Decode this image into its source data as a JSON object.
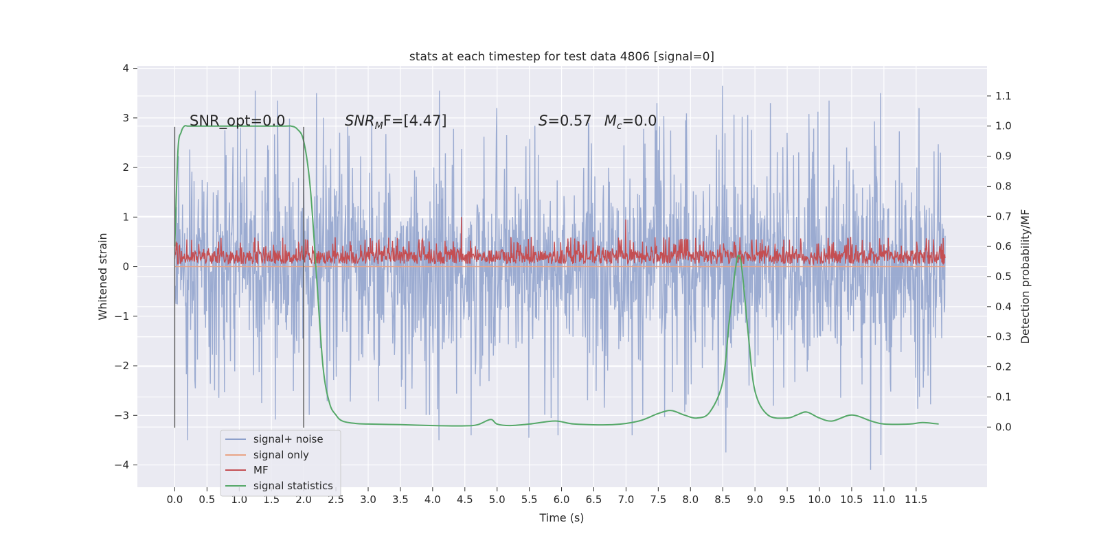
{
  "chart_data": {
    "type": "line",
    "title": "stats at each timestep for test data 4806 [signal=0]",
    "xlabel": "Time (s)",
    "ylabel": "Whitened strain",
    "ylabel_right": "Detection probability/MF",
    "xlim": [
      -0.58,
      12.6
    ],
    "ylim": [
      -4.45,
      4.05
    ],
    "ylim_right": [
      -0.2,
      1.2
    ],
    "x_ticks": [
      "0.0",
      "0.5",
      "1.0",
      "1.5",
      "2.0",
      "2.5",
      "3.0",
      "3.5",
      "4.0",
      "4.5",
      "5.0",
      "5.5",
      "6.0",
      "6.5",
      "7.0",
      "7.5",
      "8.0",
      "8.5",
      "9.0",
      "9.5",
      "10.0",
      "10.5",
      "11.0",
      "11.5"
    ],
    "y_ticks": [
      "−4",
      "−3",
      "−2",
      "−1",
      "0",
      "1",
      "2",
      "3",
      "4"
    ],
    "y_ticks_right": [
      "0.0",
      "0.1",
      "0.2",
      "0.3",
      "0.4",
      "0.5",
      "0.6",
      "0.7",
      "0.8",
      "0.9",
      "1.0",
      "1.1"
    ],
    "grid": true,
    "legend_position": "lower-left",
    "window_markers": {
      "x": [
        0.0,
        2.0
      ],
      "y_range": [
        -3.25,
        2.82
      ]
    },
    "annotations": {
      "snr_opt": "SNR_opt=0.0",
      "snr_mf_main": "SNR",
      "snr_mf_sub": "M",
      "snr_mf_tail": "F=[4.47]",
      "s_main": "S",
      "s_tail": "=0.57",
      "mc_main": "M",
      "mc_sub": "c",
      "mc_tail": "=0.0"
    },
    "series": [
      {
        "name": "signal+ noise",
        "color": "#8da0cb",
        "axis": "left",
        "time_range": [
          0.0,
          11.95
        ],
        "typical_envelope": [
          -2.0,
          2.2
        ],
        "peaks": [
          {
            "x": 0.2,
            "y": -3.5
          },
          {
            "x": 1.25,
            "y": 3.55
          },
          {
            "x": 1.6,
            "y": 3.35
          },
          {
            "x": 2.2,
            "y": 3.5
          },
          {
            "x": 4.1,
            "y": -3.5
          },
          {
            "x": 4.1,
            "y": 3.55
          },
          {
            "x": 4.6,
            "y": -3.4
          },
          {
            "x": 5.0,
            "y": 3.2
          },
          {
            "x": 5.5,
            "y": -3.45
          },
          {
            "x": 5.95,
            "y": -3.4
          },
          {
            "x": 7.1,
            "y": -3.4
          },
          {
            "x": 8.5,
            "y": 3.65
          },
          {
            "x": 8.55,
            "y": -3.75
          },
          {
            "x": 10.15,
            "y": 3.35
          },
          {
            "x": 10.8,
            "y": -4.1
          },
          {
            "x": 10.95,
            "y": 3.5
          },
          {
            "x": 10.95,
            "y": -3.8
          },
          {
            "x": 11.55,
            "y": 3.2
          }
        ]
      },
      {
        "name": "signal only",
        "color": "#e9a385",
        "axis": "left",
        "time_range": [
          0.0,
          11.95
        ],
        "constant_value": 0.0
      },
      {
        "name": "MF",
        "color": "#c44e52",
        "axis": "left",
        "time_range": [
          0.0,
          11.95
        ],
        "typical_range": [
          0.0,
          0.6
        ],
        "peaks": [
          {
            "x": 4.45,
            "y": 1.0
          },
          {
            "x": 7.0,
            "y": 0.95
          }
        ]
      },
      {
        "name": "signal statistics",
        "color": "#55a868",
        "axis": "right",
        "x": [
          0.0,
          0.05,
          0.1,
          0.15,
          0.2,
          0.3,
          1.0,
          1.7,
          1.8,
          1.9,
          2.0,
          2.1,
          2.2,
          2.3,
          2.4,
          2.5,
          2.6,
          2.8,
          3.0,
          3.5,
          4.0,
          4.5,
          4.7,
          4.9,
          5.0,
          5.2,
          5.5,
          5.9,
          6.2,
          6.8,
          7.2,
          7.5,
          7.7,
          7.9,
          8.1,
          8.3,
          8.5,
          8.6,
          8.7,
          8.75,
          8.8,
          8.9,
          9.0,
          9.2,
          9.5,
          9.65,
          9.8,
          10.0,
          10.2,
          10.5,
          10.8,
          11.0,
          11.4,
          11.6,
          11.85
        ],
        "values": [
          0.6,
          0.92,
          0.98,
          1.0,
          1.0,
          1.0,
          1.0,
          1.0,
          1.0,
          0.99,
          0.95,
          0.8,
          0.5,
          0.2,
          0.08,
          0.04,
          0.02,
          0.012,
          0.01,
          0.008,
          0.005,
          0.004,
          0.008,
          0.025,
          0.01,
          0.005,
          0.01,
          0.02,
          0.01,
          0.008,
          0.02,
          0.045,
          0.055,
          0.04,
          0.03,
          0.05,
          0.15,
          0.35,
          0.53,
          0.57,
          0.52,
          0.3,
          0.12,
          0.04,
          0.03,
          0.04,
          0.05,
          0.03,
          0.02,
          0.04,
          0.02,
          0.01,
          0.01,
          0.015,
          0.01
        ]
      }
    ]
  }
}
